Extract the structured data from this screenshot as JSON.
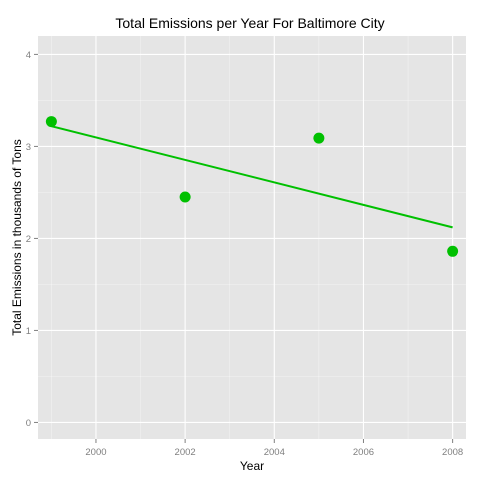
{
  "chart_data": {
    "type": "scatter",
    "title": "Total Emissions per Year For Baltimore City",
    "xlabel": "Year",
    "ylabel": "Total Emissions in thousands of Tons",
    "xlim": [
      1998.7,
      2008.3
    ],
    "ylim": [
      -0.18,
      4.2
    ],
    "x_ticks": [
      2000,
      2002,
      2004,
      2006,
      2008
    ],
    "y_ticks": [
      0,
      1,
      2,
      3,
      4
    ],
    "x_tick_labels": [
      "2000",
      "2002",
      "2004",
      "2006",
      "2008"
    ],
    "y_tick_labels": [
      "0",
      "1",
      "2",
      "3",
      "4"
    ],
    "grid": true,
    "panel_background": "#e5e5e5",
    "grid_color": "#ffffff",
    "point_color": "#00c000",
    "line_color": "#00c000",
    "x": [
      1999,
      2002,
      2005,
      2008
    ],
    "y": [
      3.27,
      2.45,
      3.09,
      1.86
    ],
    "trend_line": {
      "type": "linear",
      "x": [
        1999,
        2008
      ],
      "y": [
        3.22,
        2.12
      ]
    }
  }
}
